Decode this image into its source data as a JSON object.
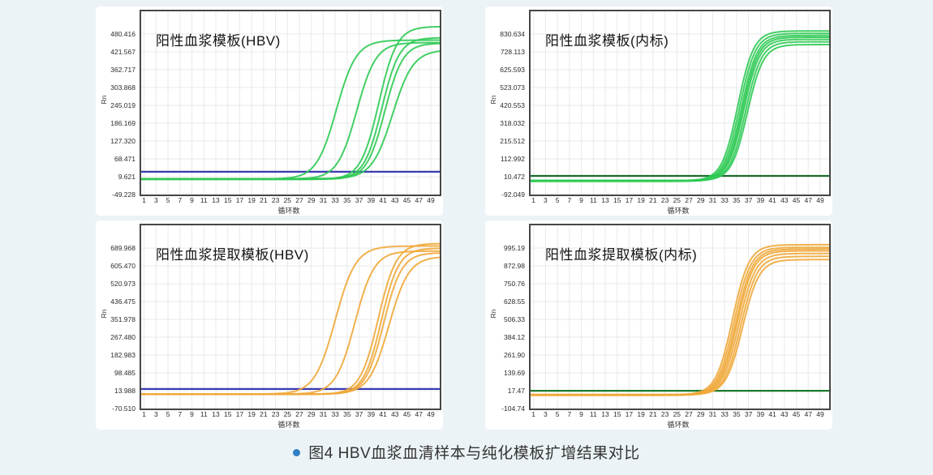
{
  "page": {
    "background": "#ecf3f7",
    "caption": {
      "text": "图4  HBV血浆血清样本与纯化模板扩增结果对比",
      "bullet_icon": "blue-dot",
      "bullet_color": "#2e80c4"
    }
  },
  "chart_data": [
    {
      "type": "line",
      "title": "阳性血浆模板(HBV)",
      "xlabel": "循环数",
      "ylabel": "Rn",
      "x_ticks": [
        "1",
        "3",
        "5",
        "7",
        "9",
        "11",
        "13",
        "15",
        "17",
        "19",
        "21",
        "23",
        "25",
        "27",
        "29",
        "31",
        "33",
        "35",
        "37",
        "39",
        "41",
        "43",
        "45",
        "47",
        "49"
      ],
      "y_ticks": [
        "480.416",
        "421.567",
        "362.717",
        "303.868",
        "245.019",
        "186.169",
        "127.320",
        "68.471",
        "9.621",
        "-49.228"
      ],
      "axis": {
        "x_min": 0.5,
        "x_max": 50.5,
        "y_min": -49.228,
        "y_max": 555,
        "grid": true
      },
      "curve_color": "#2fca54",
      "threshold": {
        "value": 26,
        "color": "#3a3ab2"
      },
      "curves": [
        {
          "mid": 33.2,
          "k": 0.6,
          "plateau": 460,
          "base": 2
        },
        {
          "mid": 36.6,
          "k": 0.62,
          "plateau": 452,
          "base": 2
        },
        {
          "mid": 40.3,
          "k": 0.66,
          "plateau": 505,
          "base": 1
        },
        {
          "mid": 40.8,
          "k": 0.68,
          "plateau": 468,
          "base": 2
        },
        {
          "mid": 41.3,
          "k": 0.66,
          "plateau": 450,
          "base": 1
        },
        {
          "mid": 42.6,
          "k": 0.58,
          "plateau": 428,
          "base": 3
        }
      ]
    },
    {
      "type": "line",
      "title": "阳性血浆模板(内标)",
      "xlabel": "循环数",
      "ylabel": "Rn",
      "x_ticks": [
        "1",
        "3",
        "5",
        "7",
        "9",
        "11",
        "13",
        "15",
        "17",
        "19",
        "21",
        "23",
        "25",
        "27",
        "29",
        "31",
        "33",
        "35",
        "37",
        "39",
        "41",
        "43",
        "45",
        "47",
        "49"
      ],
      "y_ticks": [
        "830.634",
        "728.113",
        "625.593",
        "523.073",
        "420.553",
        "318.032",
        "215.512",
        "112.992",
        "10.472",
        "-92.049"
      ],
      "axis": {
        "x_min": 0.5,
        "x_max": 50.5,
        "y_min": -92.049,
        "y_max": 961,
        "grid": true
      },
      "curve_color": "#2fca54",
      "threshold": {
        "value": 15,
        "color": "#1c6e2d"
      },
      "curves": [
        {
          "mid": 35.2,
          "k": 0.75,
          "plateau": 848,
          "base": -12
        },
        {
          "mid": 35.5,
          "k": 0.75,
          "plateau": 834,
          "base": -14
        },
        {
          "mid": 35.8,
          "k": 0.75,
          "plateau": 822,
          "base": -12
        },
        {
          "mid": 36.0,
          "k": 0.75,
          "plateau": 812,
          "base": -16
        },
        {
          "mid": 36.2,
          "k": 0.75,
          "plateau": 800,
          "base": -12
        },
        {
          "mid": 36.5,
          "k": 0.75,
          "plateau": 786,
          "base": -14
        },
        {
          "mid": 36.8,
          "k": 0.75,
          "plateau": 770,
          "base": -12
        }
      ]
    },
    {
      "type": "line",
      "title": "阳性血浆提取模板(HBV)",
      "xlabel": "循环数",
      "ylabel": "Rn",
      "x_ticks": [
        "1",
        "3",
        "5",
        "7",
        "9",
        "11",
        "13",
        "15",
        "17",
        "19",
        "21",
        "23",
        "25",
        "27",
        "29",
        "31",
        "33",
        "35",
        "37",
        "39",
        "41",
        "43",
        "45",
        "47",
        "49"
      ],
      "y_ticks": [
        "689.968",
        "605.470",
        "520.973",
        "436.475",
        "351.978",
        "267.480",
        "182.983",
        "98.485",
        "13.988",
        "-70.510"
      ],
      "axis": {
        "x_min": 0.5,
        "x_max": 50.5,
        "y_min": -70.51,
        "y_max": 798,
        "grid": true
      },
      "curve_color": "#f0a83a",
      "threshold": {
        "value": 22,
        "color": "#3a3ab2"
      },
      "curves": [
        {
          "mid": 33.0,
          "k": 0.58,
          "plateau": 700,
          "base": -2
        },
        {
          "mid": 36.3,
          "k": 0.62,
          "plateau": 676,
          "base": -2
        },
        {
          "mid": 40.2,
          "k": 0.66,
          "plateau": 712,
          "base": -3
        },
        {
          "mid": 40.7,
          "k": 0.68,
          "plateau": 690,
          "base": -2
        },
        {
          "mid": 41.1,
          "k": 0.66,
          "plateau": 668,
          "base": -3
        },
        {
          "mid": 42.0,
          "k": 0.6,
          "plateau": 650,
          "base": -2
        }
      ]
    },
    {
      "type": "line",
      "title": "阳性血浆提取模板(内标)",
      "xlabel": "循环数",
      "ylabel": "Rn",
      "x_ticks": [
        "1",
        "3",
        "5",
        "7",
        "9",
        "11",
        "13",
        "15",
        "17",
        "19",
        "21",
        "23",
        "25",
        "27",
        "29",
        "31",
        "33",
        "35",
        "37",
        "39",
        "41",
        "43",
        "45",
        "47",
        "49"
      ],
      "y_ticks": [
        "995.19",
        "872.98",
        "750.76",
        "628.55",
        "506.33",
        "384.12",
        "261.90",
        "139.69",
        "17.47",
        "-104.74"
      ],
      "axis": {
        "x_min": 0.5,
        "x_max": 50.5,
        "y_min": -104.74,
        "y_max": 1151,
        "grid": true
      },
      "curve_color": "#f0a83a",
      "threshold": {
        "value": 17,
        "color": "#1c7a2e"
      },
      "curves": [
        {
          "mid": 34.3,
          "k": 0.72,
          "plateau": 1018,
          "base": -10
        },
        {
          "mid": 34.6,
          "k": 0.72,
          "plateau": 1000,
          "base": -12
        },
        {
          "mid": 34.9,
          "k": 0.72,
          "plateau": 988,
          "base": -10
        },
        {
          "mid": 35.1,
          "k": 0.72,
          "plateau": 976,
          "base": -14
        },
        {
          "mid": 35.4,
          "k": 0.72,
          "plateau": 958,
          "base": -10
        },
        {
          "mid": 35.7,
          "k": 0.72,
          "plateau": 938,
          "base": -12
        },
        {
          "mid": 36.0,
          "k": 0.72,
          "plateau": 916,
          "base": -10
        }
      ]
    }
  ]
}
